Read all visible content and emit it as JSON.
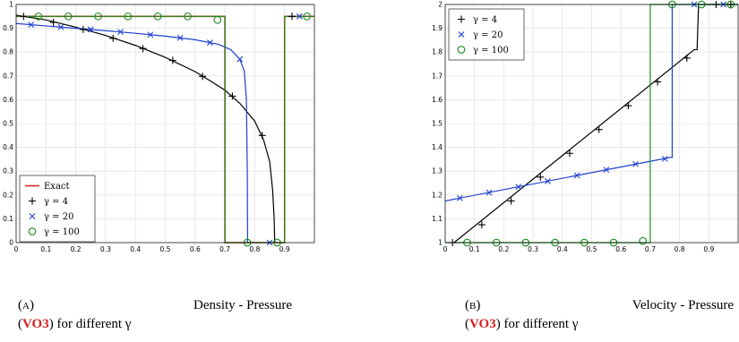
{
  "chart_data": [
    {
      "type": "line",
      "xlim": [
        0,
        1
      ],
      "ylim": [
        0,
        1
      ],
      "x_ticks": [
        "0",
        "0.1",
        "0.2",
        "0.3",
        "0.4",
        "0.5",
        "0.6",
        "0.7",
        "0.8",
        "0.9"
      ],
      "y_ticks": [
        "0",
        "0.1",
        "0.2",
        "0.3",
        "0.4",
        "0.5",
        "0.6",
        "0.7",
        "0.8",
        "0.9",
        "1"
      ],
      "grid": true,
      "legend_position": "bottom-left",
      "series": [
        {
          "name": "Exact",
          "color": "#d62728",
          "marker": "none",
          "points": [
            [
              0,
              0.95
            ],
            [
              0.7,
              0.95
            ],
            [
              0.7,
              0
            ],
            [
              0.9,
              0
            ],
            [
              0.9,
              0.95
            ],
            [
              1,
              0.95
            ]
          ]
        },
        {
          "name": "γ = 4",
          "color": "#000000",
          "marker": "plus",
          "points": [
            [
              0.025,
              0.95
            ],
            [
              0.125,
              0.925
            ],
            [
              0.225,
              0.895
            ],
            [
              0.325,
              0.858
            ],
            [
              0.425,
              0.815
            ],
            [
              0.525,
              0.765
            ],
            [
              0.625,
              0.698
            ],
            [
              0.725,
              0.615
            ],
            [
              0.825,
              0.45
            ],
            [
              0.925,
              0.95
            ]
          ],
          "curve": [
            [
              0,
              0.955
            ],
            [
              0.1,
              0.935
            ],
            [
              0.2,
              0.905
            ],
            [
              0.3,
              0.87
            ],
            [
              0.4,
              0.828
            ],
            [
              0.5,
              0.778
            ],
            [
              0.6,
              0.718
            ],
            [
              0.65,
              0.68
            ],
            [
              0.7,
              0.64
            ],
            [
              0.75,
              0.585
            ],
            [
              0.8,
              0.51
            ],
            [
              0.83,
              0.43
            ],
            [
              0.85,
              0.34
            ],
            [
              0.86,
              0.22
            ],
            [
              0.865,
              0.1
            ],
            [
              0.867,
              0
            ]
          ]
        },
        {
          "name": "γ = 20",
          "color": "#1f3fcf",
          "marker": "x",
          "points": [
            [
              0.05,
              0.915
            ],
            [
              0.15,
              0.905
            ],
            [
              0.25,
              0.895
            ],
            [
              0.35,
              0.885
            ],
            [
              0.45,
              0.873
            ],
            [
              0.55,
              0.86
            ],
            [
              0.65,
              0.84
            ],
            [
              0.75,
              0.77
            ],
            [
              0.85,
              0
            ],
            [
              0.95,
              0.95
            ]
          ],
          "curve": [
            [
              0,
              0.92
            ],
            [
              0.1,
              0.91
            ],
            [
              0.2,
              0.9
            ],
            [
              0.3,
              0.89
            ],
            [
              0.4,
              0.879
            ],
            [
              0.5,
              0.867
            ],
            [
              0.6,
              0.852
            ],
            [
              0.68,
              0.832
            ],
            [
              0.72,
              0.81
            ],
            [
              0.75,
              0.77
            ],
            [
              0.765,
              0.72
            ],
            [
              0.772,
              0.6
            ],
            [
              0.775,
              0.3
            ],
            [
              0.776,
              0
            ]
          ]
        },
        {
          "name": "γ = 100",
          "color": "#1e8c1e",
          "marker": "circle",
          "points": [
            [
              0.075,
              0.95
            ],
            [
              0.175,
              0.95
            ],
            [
              0.275,
              0.95
            ],
            [
              0.375,
              0.95
            ],
            [
              0.475,
              0.95
            ],
            [
              0.575,
              0.95
            ],
            [
              0.675,
              0.935
            ],
            [
              0.775,
              0
            ],
            [
              0.875,
              0
            ],
            [
              0.975,
              0.95
            ]
          ],
          "curve": [
            [
              0,
              0.95
            ],
            [
              0.7,
              0.95
            ],
            [
              0.7,
              0
            ],
            [
              0.9,
              0
            ],
            [
              0.9,
              0.95
            ],
            [
              1,
              0.95
            ]
          ]
        }
      ]
    },
    {
      "type": "line",
      "xlim": [
        0,
        1
      ],
      "ylim": [
        1,
        2
      ],
      "x_ticks": [
        "0",
        "0.1",
        "0.2",
        "0.3",
        "0.4",
        "0.5",
        "0.6",
        "0.7",
        "0.8",
        "0.9"
      ],
      "y_ticks": [
        "1",
        "1.1",
        "1.2",
        "1.3",
        "1.4",
        "1.5",
        "1.6",
        "1.7",
        "1.8",
        "1.9",
        "2"
      ],
      "grid": true,
      "legend_position": "top-left",
      "series": [
        {
          "name": "γ = 4",
          "color": "#000000",
          "marker": "plus",
          "points": [
            [
              0.025,
              1.0
            ],
            [
              0.125,
              1.075
            ],
            [
              0.225,
              1.175
            ],
            [
              0.325,
              1.275
            ],
            [
              0.425,
              1.375
            ],
            [
              0.525,
              1.475
            ],
            [
              0.625,
              1.575
            ],
            [
              0.725,
              1.675
            ],
            [
              0.825,
              1.775
            ],
            [
              0.925,
              2.0
            ],
            [
              0.975,
              2.0
            ]
          ],
          "curve": [
            [
              0.03,
              1.0
            ],
            [
              0.85,
              1.81
            ],
            [
              0.86,
              1.81
            ],
            [
              0.865,
              2.0
            ],
            [
              1,
              2.0
            ]
          ]
        },
        {
          "name": "γ = 20",
          "color": "#1f3fcf",
          "marker": "x",
          "points": [
            [
              0.05,
              1.187
            ],
            [
              0.15,
              1.21
            ],
            [
              0.25,
              1.234
            ],
            [
              0.35,
              1.258
            ],
            [
              0.45,
              1.282
            ],
            [
              0.55,
              1.306
            ],
            [
              0.65,
              1.33
            ],
            [
              0.75,
              1.352
            ],
            [
              0.85,
              2.0
            ],
            [
              0.95,
              2.0
            ]
          ],
          "curve": [
            [
              0,
              1.175
            ],
            [
              0.77,
              1.358
            ],
            [
              0.775,
              1.358
            ],
            [
              0.775,
              2.0
            ],
            [
              1,
              2.0
            ]
          ]
        },
        {
          "name": "γ = 100",
          "color": "#1e8c1e",
          "marker": "circle",
          "points": [
            [
              0.075,
              1.0
            ],
            [
              0.175,
              1.0
            ],
            [
              0.275,
              1.0
            ],
            [
              0.375,
              1.0
            ],
            [
              0.475,
              1.0
            ],
            [
              0.575,
              1.0
            ],
            [
              0.675,
              1.007
            ],
            [
              0.775,
              2.0
            ],
            [
              0.875,
              2.0
            ],
            [
              0.975,
              2.0
            ]
          ],
          "curve": [
            [
              0,
              1.0
            ],
            [
              0.7,
              1.0
            ],
            [
              0.7,
              2.0
            ],
            [
              1,
              2.0
            ]
          ]
        }
      ]
    }
  ],
  "captions": {
    "a": {
      "label": "(a)",
      "title": "Density - Pressure",
      "name": "VO3",
      "suffix": "for different γ"
    },
    "b": {
      "label": "(b)",
      "title": "Velocity - Pressure",
      "name": "VO3",
      "suffix": "for different γ"
    }
  }
}
